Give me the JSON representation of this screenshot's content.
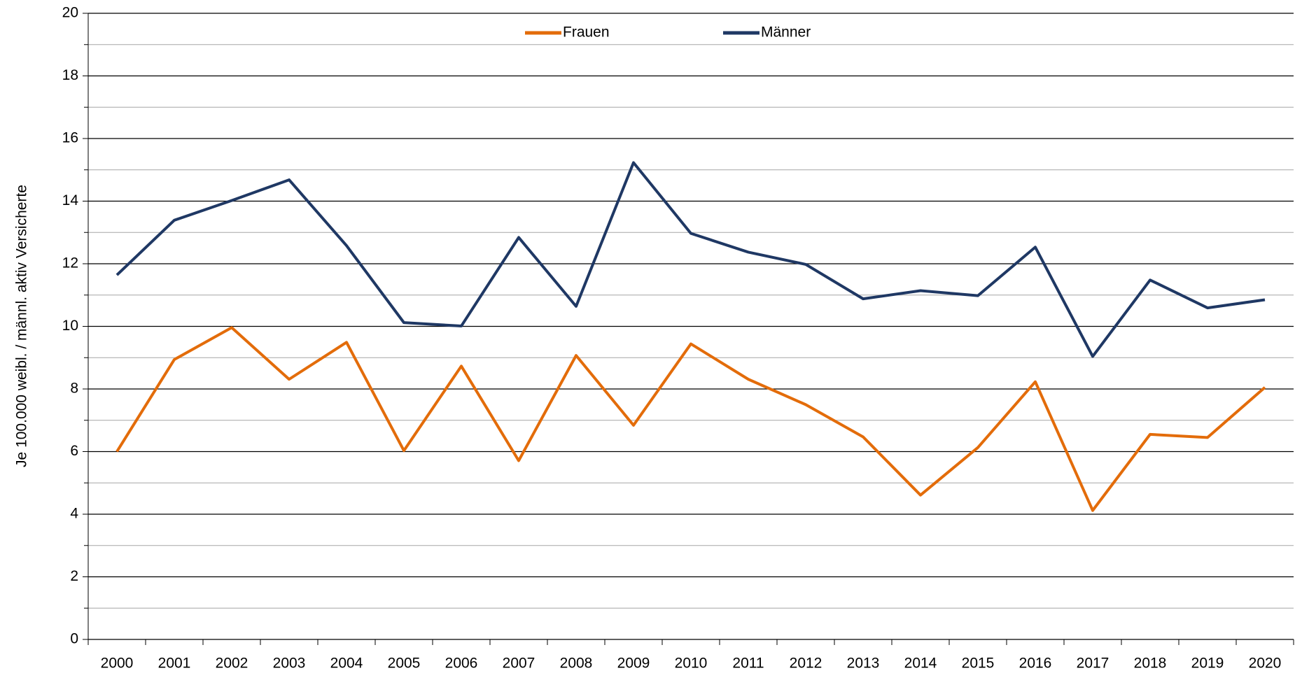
{
  "chart_data": {
    "type": "line",
    "y_label": "Je 100.000 weibl. / männl. aktiv Versicherte",
    "categories": [
      "2000",
      "2001",
      "2002",
      "2003",
      "2004",
      "2005",
      "2006",
      "2007",
      "2008",
      "2009",
      "2010",
      "2011",
      "2012",
      "2013",
      "2014",
      "2015",
      "2016",
      "2017",
      "2018",
      "2019",
      "2020"
    ],
    "series": [
      {
        "name": "Frauen",
        "color": "#e36c0a",
        "values": [
          6.0,
          8.94,
          9.96,
          8.31,
          9.49,
          6.03,
          8.73,
          5.71,
          9.07,
          6.84,
          9.44,
          8.31,
          7.5,
          6.47,
          4.61,
          6.13,
          8.23,
          4.12,
          6.55,
          6.45,
          8.05
        ]
      },
      {
        "name": "Männer",
        "color": "#1f3864",
        "values": [
          11.64,
          13.39,
          14.02,
          14.68,
          12.58,
          10.12,
          10.01,
          12.84,
          10.64,
          15.23,
          12.97,
          12.37,
          11.98,
          10.88,
          11.14,
          10.98,
          12.53,
          9.04,
          11.48,
          10.59,
          10.85
        ]
      }
    ],
    "ylim": [
      0,
      20
    ],
    "yticks": [
      0,
      2,
      4,
      6,
      8,
      10,
      12,
      14,
      16,
      18,
      20
    ],
    "grid": true,
    "minor_grid": true,
    "legend": "top"
  }
}
